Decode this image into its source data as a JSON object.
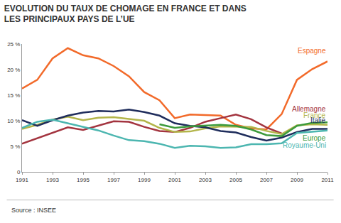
{
  "chart_data": {
    "type": "line",
    "title": "EVOLUTION DU TAUX DE CHOMAGE EN FRANCE ET DANS\nLES PRINCIPAUX PAYS DE L’UE",
    "source": "Source : INSEE",
    "x": [
      1991,
      1992,
      1993,
      1994,
      1995,
      1996,
      1997,
      1998,
      1999,
      2000,
      2001,
      2002,
      2003,
      2004,
      2005,
      2006,
      2007,
      2008,
      2009,
      2010,
      2011
    ],
    "xlim": [
      1991,
      2011
    ],
    "xticks": [
      1991,
      1993,
      1995,
      1997,
      1999,
      2001,
      2003,
      2005,
      2007,
      2009,
      2011
    ],
    "ylim": [
      0,
      25
    ],
    "yticks": [
      0,
      {
        "value": 5,
        "label": "5 %"
      },
      {
        "value": 10,
        "label": "10 %"
      },
      {
        "value": 15,
        "label": "15 %"
      },
      {
        "value": 20,
        "label": "20 %"
      },
      {
        "value": 25,
        "label": "25 %"
      }
    ],
    "grid": false,
    "series": [
      {
        "name": "Espagne",
        "color": "#f26a2a",
        "values": [
          16.3,
          18.0,
          22.2,
          24.2,
          22.8,
          22.2,
          20.7,
          18.7,
          15.6,
          14.0,
          10.5,
          11.2,
          11.1,
          11.0,
          9.2,
          8.5,
          8.3,
          11.3,
          18.0,
          20.1,
          21.6
        ]
      },
      {
        "name": "Allemagne",
        "color": "#a3343f",
        "values": [
          5.5,
          6.6,
          7.7,
          8.7,
          8.2,
          9.0,
          9.9,
          9.8,
          8.8,
          8.0,
          7.8,
          8.6,
          9.8,
          10.5,
          11.2,
          10.3,
          8.7,
          7.5,
          null,
          null,
          null
        ]
      },
      {
        "name": "France",
        "color": "#b3b54a",
        "values": [
          8.4,
          9.2,
          10.2,
          10.8,
          10.1,
          10.6,
          10.7,
          10.3,
          10.0,
          8.6,
          7.8,
          7.9,
          8.5,
          8.9,
          8.9,
          8.8,
          8.0,
          7.4,
          9.1,
          9.3,
          9.2
        ]
      },
      {
        "name": "Italie",
        "color": "#1f2d5c",
        "values": [
          10.1,
          9.0,
          10.1,
          11.0,
          11.6,
          11.9,
          11.8,
          12.2,
          11.7,
          11.0,
          9.5,
          9.0,
          8.7,
          8.0,
          7.7,
          6.8,
          6.1,
          6.7,
          7.8,
          8.4,
          8.4
        ]
      },
      {
        "name": "Europe",
        "color": "#3c9a3c",
        "values": [
          null,
          null,
          null,
          null,
          null,
          null,
          null,
          null,
          null,
          9.3,
          8.6,
          8.9,
          9.1,
          9.2,
          9.0,
          8.3,
          7.2,
          7.0,
          9.0,
          9.6,
          9.7
        ]
      },
      {
        "name": "Royaume-Uni",
        "color": "#4cb6b0",
        "values": [
          8.6,
          9.8,
          10.2,
          9.5,
          8.7,
          8.1,
          7.1,
          6.2,
          6.0,
          5.5,
          4.7,
          5.1,
          5.0,
          4.7,
          4.8,
          5.4,
          5.4,
          5.6,
          7.6,
          7.8,
          8.1
        ]
      }
    ]
  }
}
